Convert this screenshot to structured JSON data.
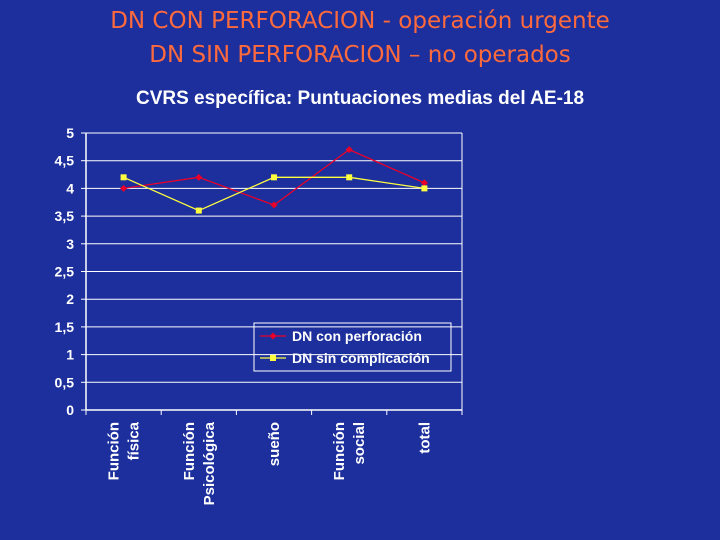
{
  "slide": {
    "title_line1": "DN CON PERFORACION - operación urgente",
    "title_line2": "DN SIN PERFORACION – no operados",
    "subtitle": "CVRS específica: Puntuaciones medias del AE-18"
  },
  "chart_data": {
    "type": "line",
    "title": "CVRS específica: Puntuaciones medias del AE-18",
    "xlabel": "",
    "ylabel": "",
    "categories": [
      [
        "Función",
        "física"
      ],
      [
        "Función",
        "Psicológica"
      ],
      [
        "sueño"
      ],
      [
        "Función",
        "social"
      ],
      [
        "total"
      ]
    ],
    "ylim": [
      0,
      5
    ],
    "yticks": [
      0,
      0.5,
      1,
      1.5,
      2,
      2.5,
      3,
      3.5,
      4,
      4.5,
      5
    ],
    "ytick_labels": [
      "0",
      "0,5",
      "1",
      "1,5",
      "2",
      "2,5",
      "3",
      "3,5",
      "4",
      "4,5",
      "5"
    ],
    "grid": true,
    "legend_position": "center-bottom",
    "series": [
      {
        "name": "DN con perforación",
        "values": [
          4.0,
          4.2,
          3.7,
          4.7,
          4.1
        ],
        "color": "#e8002a",
        "marker": "diamond"
      },
      {
        "name": "DN sin complicación",
        "values": [
          4.2,
          3.6,
          4.2,
          4.2,
          4.0
        ],
        "color": "#ffff40",
        "marker": "square"
      }
    ]
  }
}
